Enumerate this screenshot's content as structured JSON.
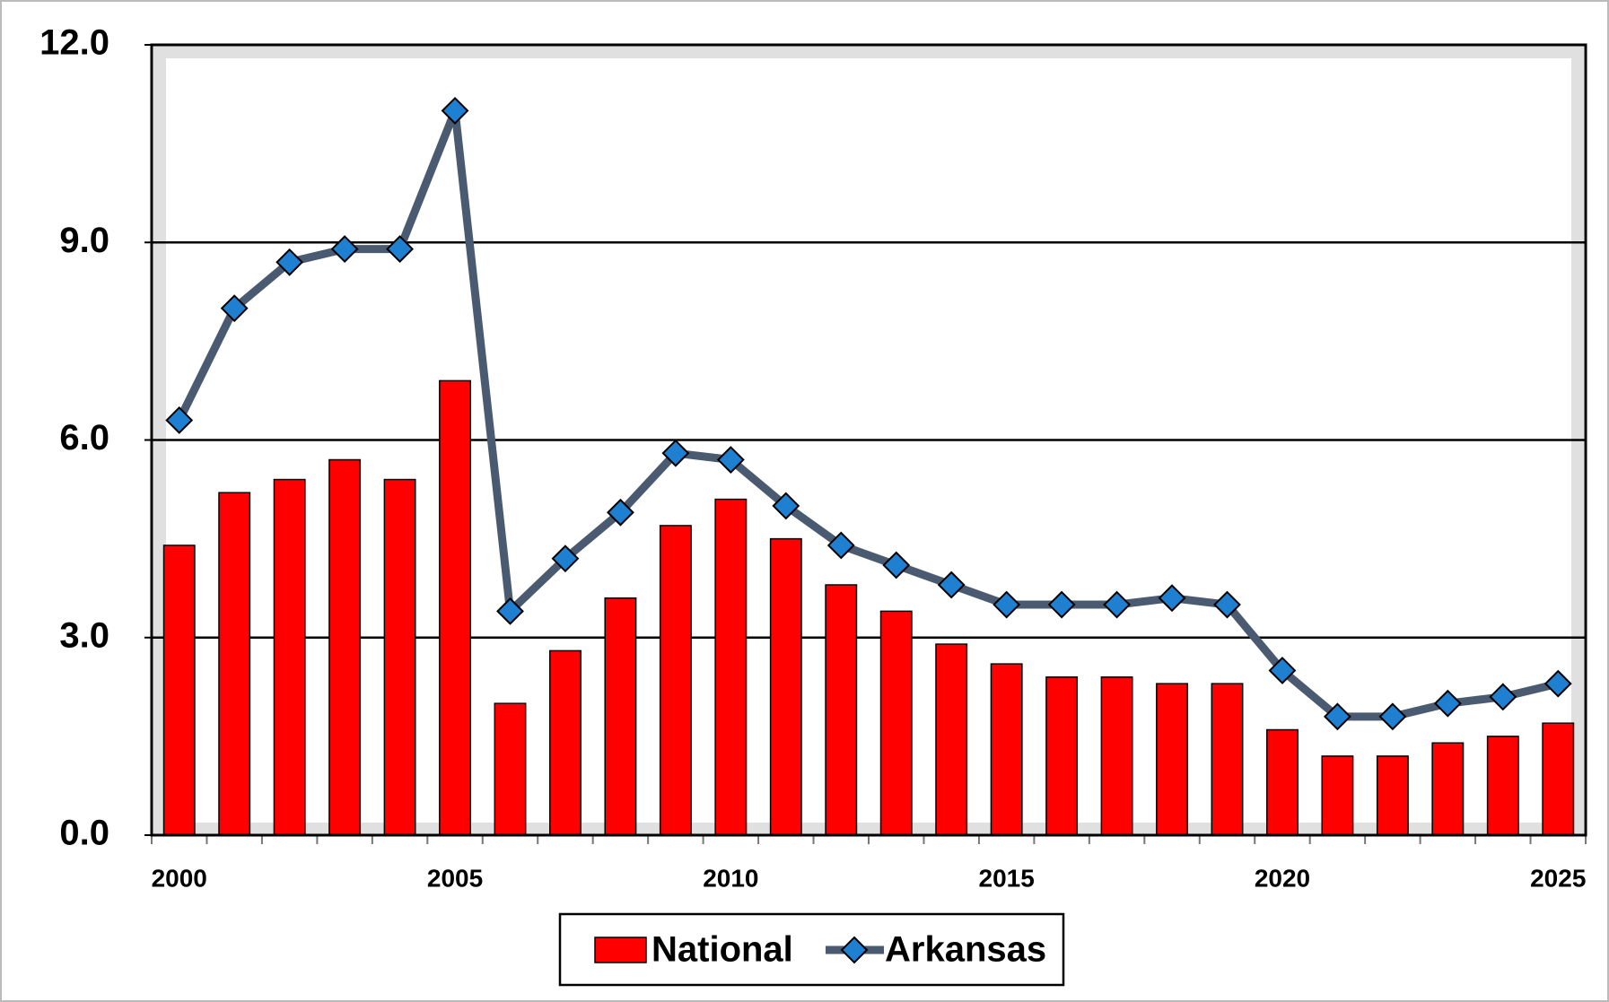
{
  "chart_data": {
    "type": "bar_line",
    "x": [
      2000,
      2001,
      2002,
      2003,
      2004,
      2005,
      2006,
      2007,
      2008,
      2009,
      2010,
      2011,
      2012,
      2013,
      2014,
      2015,
      2016,
      2017,
      2018,
      2019,
      2020,
      2021,
      2022,
      2023,
      2024,
      2025
    ],
    "series": [
      {
        "name": "National",
        "type": "bar",
        "color": "#ff0000",
        "values": [
          4.4,
          5.2,
          5.4,
          5.7,
          5.4,
          6.9,
          2.0,
          2.8,
          3.6,
          4.7,
          5.1,
          4.5,
          3.8,
          3.4,
          2.9,
          2.6,
          2.4,
          2.4,
          2.3,
          2.3,
          1.6,
          1.2,
          1.2,
          1.4,
          1.5,
          1.7
        ]
      },
      {
        "name": "Arkansas",
        "type": "line",
        "color": "#4a5a70",
        "marker_color": "#1f7fd0",
        "values": [
          6.3,
          8.0,
          8.7,
          8.9,
          8.9,
          11.0,
          3.4,
          4.2,
          4.9,
          5.8,
          5.7,
          5.0,
          4.4,
          4.1,
          3.8,
          3.5,
          3.5,
          3.5,
          3.6,
          3.5,
          2.5,
          1.8,
          1.8,
          2.0,
          2.1,
          2.3
        ]
      }
    ],
    "xlim": [
      1999.5,
      2025.5
    ],
    "xticks": [
      2000,
      2005,
      2010,
      2015,
      2020,
      2025
    ],
    "ylim": [
      0,
      12
    ],
    "yticks": [
      {
        "value": 0,
        "label": "0.0"
      },
      {
        "value": 3,
        "label": "3.0"
      },
      {
        "value": 6,
        "label": "6.0"
      },
      {
        "value": 9,
        "label": "9.0"
      },
      {
        "value": 12,
        "label": "12.0"
      }
    ],
    "grid": true,
    "legend": "bottom"
  }
}
